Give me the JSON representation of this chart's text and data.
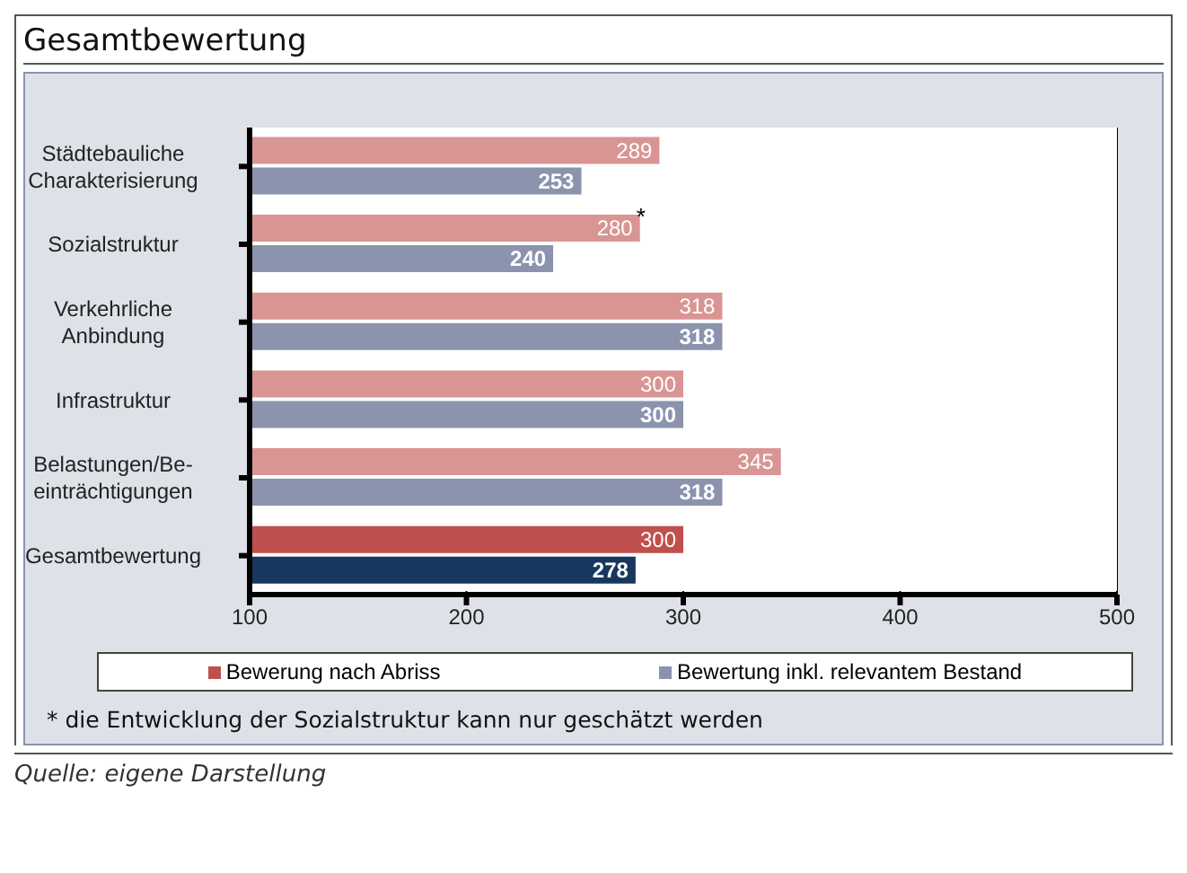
{
  "chart_data": {
    "type": "bar",
    "orientation": "horizontal",
    "title": "Gesamtbewertung",
    "categories": [
      "Städtebauliche Charakterisierung",
      "Sozialstruktur",
      "Verkehrliche Anbindung",
      "Infrastruktur",
      "Belastungen/Be-einträchtigungen",
      "Gesamtbewertung"
    ],
    "series": [
      {
        "name": "Bewerung nach Abriss",
        "color": "#c0504d",
        "colors": [
          "#d99594",
          "#d99594",
          "#d99594",
          "#d99594",
          "#d99594",
          "#c0504d"
        ],
        "values": [
          289,
          280,
          318,
          300,
          345,
          300
        ]
      },
      {
        "name": "Bewertung inkl. relevantem Bestand",
        "color": "#8b93ad",
        "colors": [
          "#8b93ad",
          "#8b93ad",
          "#8b93ad",
          "#8b93ad",
          "#8b93ad",
          "#17375e"
        ],
        "values": [
          253,
          240,
          318,
          300,
          318,
          278
        ]
      }
    ],
    "xlim": [
      100,
      500
    ],
    "xticks": [
      100,
      200,
      300,
      400,
      500
    ],
    "grid": "x",
    "legend": "bottom",
    "data_labels": true,
    "annotations": [
      {
        "text": "*",
        "x": 280,
        "y": "Sozialstruktur"
      },
      "* die Entwicklung der Sozialstruktur kann nur geschätzt werden",
      "Quelle: eigene Darstellung"
    ]
  }
}
